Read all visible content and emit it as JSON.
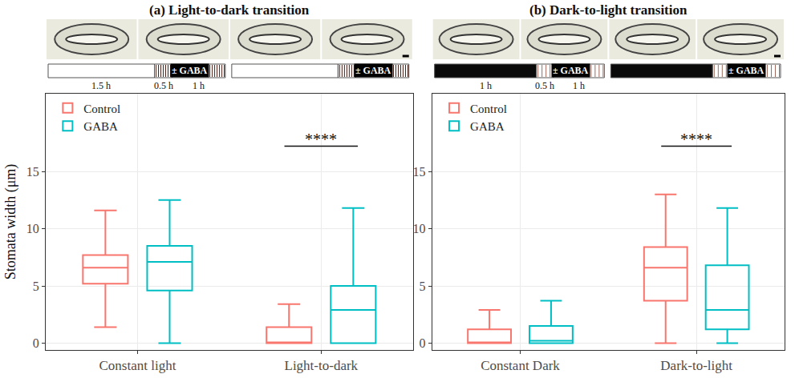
{
  "chart_data": [
    {
      "type": "box",
      "title": "(a) Light-to-dark transition",
      "y_label": "Stomata width (μm)",
      "categories": [
        "Constant light",
        "Light-to-dark"
      ],
      "series": [
        {
          "name": "Control",
          "color": "#F8766D",
          "lowerfence": [
            1.4,
            0
          ],
          "q1": [
            5.2,
            0
          ],
          "median": [
            6.6,
            0
          ],
          "q3": [
            7.7,
            1.4
          ],
          "upperfence": [
            11.6,
            3.4
          ]
        },
        {
          "name": "GABA",
          "color": "#00BFC4",
          "lowerfence": [
            0,
            0
          ],
          "q1": [
            4.6,
            0
          ],
          "median": [
            7.1,
            2.9
          ],
          "q3": [
            8.5,
            5.0
          ],
          "upperfence": [
            12.5,
            11.8
          ]
        }
      ],
      "ylim": [
        -0.6,
        21.8
      ],
      "yticks": [
        0,
        5,
        10,
        15
      ],
      "grid": true,
      "legend": "top left",
      "annotations": [
        {
          "category": "Light-to-dark",
          "text": "****"
        }
      ],
      "protocol": {
        "treatment": "± GABA",
        "timelines": [
          {
            "segments": [
              {
                "phase": "light",
                "duration": "1.5 h"
              },
              {
                "phase": "dark",
                "duration": "0.5 h"
              },
              {
                "phase": "dark",
                "duration": "1 h"
              }
            ]
          },
          {
            "segments": [
              {
                "phase": "light"
              },
              {
                "phase": "dark"
              },
              {
                "phase": "dark"
              }
            ]
          }
        ]
      }
    },
    {
      "type": "box",
      "title": "(b) Dark-to-light transition",
      "categories": [
        "Constant Dark",
        "Dark-to-light"
      ],
      "series": [
        {
          "name": "Control",
          "color": "#F8766D",
          "lowerfence": [
            0,
            0
          ],
          "q1": [
            0,
            3.7
          ],
          "median": [
            0,
            6.6
          ],
          "q3": [
            1.2,
            8.4
          ],
          "upperfence": [
            2.9,
            13.0
          ]
        },
        {
          "name": "GABA",
          "color": "#00BFC4",
          "lowerfence": [
            0,
            0
          ],
          "q1": [
            0,
            1.2
          ],
          "median": [
            0.2,
            2.9
          ],
          "q3": [
            1.5,
            6.8
          ],
          "upperfence": [
            3.7,
            11.8
          ]
        }
      ],
      "ylim": [
        -0.6,
        21.8
      ],
      "yticks": [
        0,
        5,
        10,
        15
      ],
      "grid": true,
      "legend": "top left",
      "annotations": [
        {
          "category": "Dark-to-light",
          "text": "****"
        }
      ],
      "protocol": {
        "treatment": "± GABA",
        "timelines": [
          {
            "segments": [
              {
                "phase": "dark",
                "duration": "1 h"
              },
              {
                "phase": "light",
                "duration": "0.5 h"
              },
              {
                "phase": "light",
                "duration": "1 h"
              }
            ]
          },
          {
            "segments": [
              {
                "phase": "dark"
              },
              {
                "phase": "light"
              },
              {
                "phase": "light"
              }
            ]
          }
        ]
      }
    }
  ]
}
